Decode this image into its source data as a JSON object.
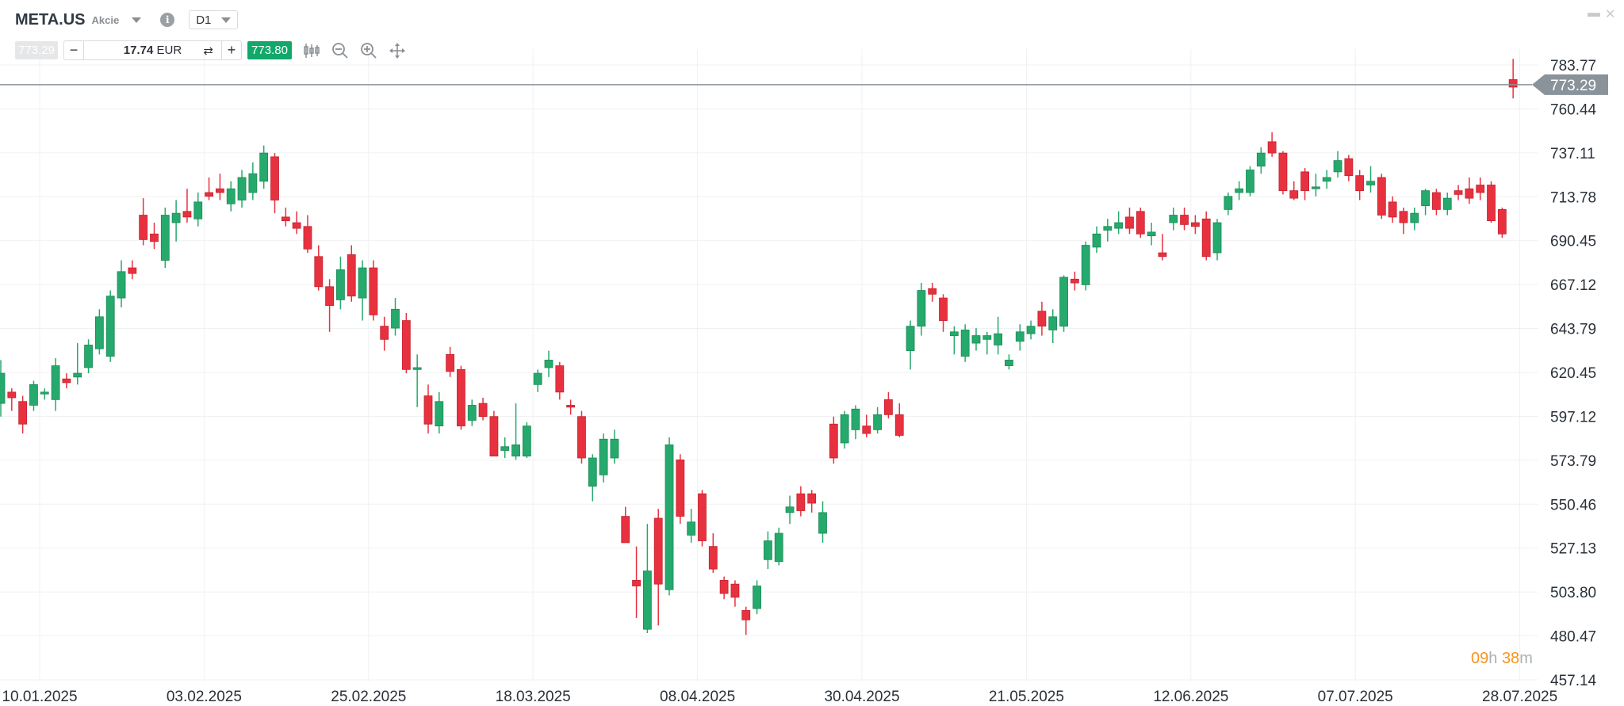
{
  "header": {
    "symbol": "META.US",
    "type": "Akcie",
    "timeframe": "D1",
    "sell_price": "773.29",
    "quantity": "17.74",
    "currency": "EUR",
    "buy_price": "773.80",
    "tools": [
      "candlestick-type-icon",
      "zoom-out-icon",
      "zoom-in-icon",
      "move-icon"
    ]
  },
  "timer": {
    "hours": "09",
    "h": "h",
    "minutes": "38",
    "m": "m"
  },
  "colors": {
    "up": "#26a96c",
    "down": "#e8313f",
    "buy": "#12a86a",
    "price_line": "#8a9399",
    "timer": "#f7931e"
  },
  "chart_data": {
    "type": "candlestick",
    "y_ticks": [
      "783.77",
      "760.44",
      "737.11",
      "713.78",
      "690.45",
      "667.12",
      "643.79",
      "620.45",
      "597.12",
      "573.79",
      "550.46",
      "527.13",
      "503.80",
      "480.47",
      "457.14"
    ],
    "ylim": [
      457.14,
      783.77
    ],
    "x_ticks": [
      "10.01.2025",
      "03.02.2025",
      "25.02.2025",
      "18.03.2025",
      "08.04.2025",
      "30.04.2025",
      "21.05.2025",
      "12.06.2025",
      "07.07.2025",
      "28.07.2025"
    ],
    "current_price": 773.29,
    "current_price_label": "773.29",
    "grid": true,
    "candles_ohlc": [
      [
        604,
        627,
        597,
        620
      ],
      [
        610,
        612,
        600,
        607
      ],
      [
        605,
        608,
        588,
        593
      ],
      [
        603,
        616,
        600,
        614
      ],
      [
        609,
        612,
        606,
        610
      ],
      [
        606,
        628,
        600,
        624
      ],
      [
        617,
        620,
        612,
        615
      ],
      [
        618,
        636,
        614,
        620
      ],
      [
        623,
        638,
        620,
        635
      ],
      [
        633,
        654,
        630,
        650
      ],
      [
        629,
        664,
        626,
        661
      ],
      [
        660,
        680,
        655,
        674
      ],
      [
        676,
        680,
        670,
        673
      ],
      [
        704,
        713,
        688,
        691
      ],
      [
        694,
        700,
        686,
        690
      ],
      [
        680,
        708,
        676,
        704
      ],
      [
        700,
        712,
        690,
        705
      ],
      [
        706,
        718,
        700,
        703
      ],
      [
        702,
        716,
        698,
        711
      ],
      [
        716,
        724,
        712,
        714
      ],
      [
        718,
        726,
        712,
        716
      ],
      [
        710,
        722,
        706,
        718
      ],
      [
        712,
        728,
        708,
        724
      ],
      [
        716,
        732,
        712,
        726
      ],
      [
        722,
        741,
        718,
        737
      ],
      [
        735,
        737,
        705,
        712
      ],
      [
        703,
        708,
        698,
        701
      ],
      [
        700,
        706,
        694,
        697
      ],
      [
        698,
        704,
        684,
        686
      ],
      [
        682,
        688,
        664,
        666
      ],
      [
        666,
        670,
        642,
        656
      ],
      [
        659,
        682,
        654,
        675
      ],
      [
        683,
        688,
        658,
        661
      ],
      [
        660,
        680,
        648,
        676
      ],
      [
        676,
        680,
        648,
        651
      ],
      [
        645,
        650,
        632,
        638
      ],
      [
        644,
        660,
        640,
        654
      ],
      [
        648,
        652,
        620,
        622
      ],
      [
        622,
        630,
        602,
        623
      ],
      [
        608,
        614,
        588,
        593
      ],
      [
        592,
        610,
        588,
        605
      ],
      [
        630,
        634,
        618,
        621
      ],
      [
        622,
        624,
        590,
        592
      ],
      [
        595,
        606,
        592,
        603
      ],
      [
        604,
        607,
        595,
        597
      ],
      [
        597,
        600,
        576,
        576
      ],
      [
        579,
        586,
        575,
        581
      ],
      [
        576,
        604,
        574,
        582
      ],
      [
        576,
        594,
        575,
        592
      ],
      [
        614,
        622,
        610,
        620
      ],
      [
        623,
        632,
        618,
        627
      ],
      [
        624,
        626,
        606,
        610
      ],
      [
        603,
        606,
        598,
        602
      ],
      [
        597,
        600,
        572,
        575
      ],
      [
        560,
        577,
        552,
        575
      ],
      [
        566,
        588,
        562,
        585
      ],
      [
        575,
        590,
        572,
        585
      ],
      [
        544,
        549,
        530,
        530
      ],
      [
        510,
        528,
        490,
        507
      ],
      [
        484,
        540,
        482,
        515
      ],
      [
        543,
        548,
        486,
        508
      ],
      [
        505,
        586,
        502,
        582
      ],
      [
        574,
        577,
        540,
        544
      ],
      [
        534,
        548,
        530,
        541
      ],
      [
        556,
        558,
        528,
        531
      ],
      [
        528,
        535,
        514,
        516
      ],
      [
        510,
        512,
        500,
        503
      ],
      [
        508,
        510,
        496,
        501
      ],
      [
        494,
        496,
        481,
        489
      ],
      [
        495,
        510,
        492,
        507
      ],
      [
        521,
        536,
        516,
        531
      ],
      [
        520,
        538,
        518,
        535
      ],
      [
        546,
        555,
        540,
        549
      ],
      [
        556,
        560,
        544,
        547
      ],
      [
        556,
        558,
        546,
        551
      ],
      [
        535,
        552,
        530,
        546
      ],
      [
        593,
        597,
        572,
        575
      ],
      [
        583,
        600,
        580,
        598
      ],
      [
        590,
        603,
        585,
        601
      ],
      [
        592,
        598,
        586,
        588
      ],
      [
        590,
        602,
        588,
        598
      ],
      [
        606,
        610,
        596,
        598
      ],
      [
        598,
        604,
        586,
        587
      ],
      [
        632,
        648,
        622,
        645
      ],
      [
        645,
        668,
        640,
        664
      ],
      [
        665,
        668,
        658,
        662
      ],
      [
        660,
        662,
        642,
        648
      ],
      [
        640,
        645,
        630,
        642
      ],
      [
        629,
        646,
        626,
        643
      ],
      [
        636,
        644,
        632,
        640
      ],
      [
        638,
        642,
        630,
        640
      ],
      [
        635,
        650,
        630,
        641
      ],
      [
        624,
        630,
        622,
        627
      ],
      [
        637,
        646,
        632,
        642
      ],
      [
        641,
        648,
        638,
        645
      ],
      [
        653,
        658,
        640,
        645
      ],
      [
        643,
        654,
        636,
        650
      ],
      [
        645,
        672,
        642,
        671
      ],
      [
        670,
        674,
        664,
        668
      ],
      [
        667,
        690,
        664,
        688
      ],
      [
        687,
        698,
        684,
        694
      ],
      [
        696,
        702,
        690,
        698
      ],
      [
        697,
        706,
        694,
        700
      ],
      [
        703,
        708,
        694,
        697
      ],
      [
        706,
        708,
        692,
        694
      ],
      [
        693,
        700,
        688,
        695
      ],
      [
        684,
        694,
        680,
        682
      ],
      [
        700,
        708,
        696,
        704
      ],
      [
        704,
        708,
        696,
        699
      ],
      [
        700,
        704,
        694,
        698
      ],
      [
        702,
        706,
        680,
        682
      ],
      [
        684,
        702,
        680,
        700
      ],
      [
        707,
        716,
        704,
        714
      ],
      [
        716,
        722,
        712,
        718
      ],
      [
        716,
        730,
        714,
        728
      ],
      [
        730,
        740,
        726,
        737
      ],
      [
        743,
        748,
        735,
        737
      ],
      [
        737,
        738,
        715,
        717
      ],
      [
        717,
        722,
        712,
        713
      ],
      [
        727,
        729,
        712,
        717
      ],
      [
        718,
        726,
        714,
        719
      ],
      [
        722,
        728,
        718,
        724
      ],
      [
        727,
        738,
        724,
        733
      ],
      [
        734,
        736,
        722,
        725
      ],
      [
        725,
        728,
        712,
        717
      ],
      [
        720,
        730,
        716,
        722
      ],
      [
        724,
        726,
        702,
        704
      ],
      [
        711,
        714,
        700,
        703
      ],
      [
        706,
        708,
        694,
        700
      ],
      [
        700,
        708,
        696,
        705
      ],
      [
        709,
        718,
        704,
        717
      ],
      [
        716,
        718,
        704,
        707
      ],
      [
        707,
        716,
        704,
        713
      ],
      [
        717,
        720,
        712,
        715
      ],
      [
        718,
        724,
        710,
        713
      ],
      [
        720,
        724,
        712,
        716
      ],
      [
        720,
        722,
        700,
        701
      ],
      [
        707,
        708,
        692,
        694
      ],
      [
        776,
        787,
        766,
        772
      ]
    ]
  }
}
